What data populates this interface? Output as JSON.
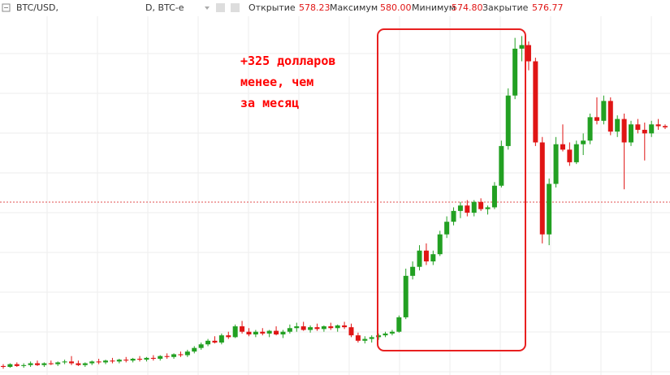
{
  "header": {
    "symbol": "BTC/USD,",
    "interval": "D, BTC-e",
    "open_label": "Открытие",
    "open": "578.23",
    "high_label": "Максимум",
    "high": "580.00",
    "low_label": "Минимум",
    "low": "574.80",
    "close_label": "Закрытие",
    "close": "576.77"
  },
  "chart_data": {
    "type": "candlestick",
    "annotation": [
      "+325 долларов",
      "менее, чем",
      "за месяц"
    ],
    "up_color": "#22a022",
    "down_color": "#e01515",
    "ylim": [
      302,
      718
    ],
    "open": [
      312,
      311,
      314,
      312,
      313,
      315,
      313,
      315,
      314,
      316,
      317,
      315,
      313,
      315,
      317,
      316,
      318,
      317,
      319,
      318,
      320,
      319,
      321,
      320,
      323,
      322,
      325,
      324,
      328,
      332,
      336,
      340,
      338,
      346,
      344,
      356,
      350,
      347,
      350,
      348,
      351,
      347,
      350,
      354,
      356,
      352,
      355,
      353,
      356,
      354,
      357,
      355,
      346,
      340,
      342,
      344,
      346,
      348,
      350,
      366,
      412,
      422,
      440,
      428,
      436,
      458,
      472,
      484,
      490,
      482,
      494,
      486,
      488,
      512,
      556,
      612,
      664,
      668,
      650,
      560,
      458,
      514,
      558,
      552,
      538,
      558,
      562,
      588,
      584,
      606,
      572,
      586,
      560,
      580,
      574,
      570,
      580,
      578.23
    ],
    "high": [
      314,
      315,
      316,
      315,
      317,
      318,
      316,
      318,
      317,
      319,
      323,
      318,
      316,
      318,
      320,
      319,
      321,
      320,
      322,
      321,
      323,
      322,
      324,
      324,
      326,
      326,
      328,
      330,
      334,
      338,
      342,
      345,
      348,
      350,
      358,
      362,
      354,
      352,
      354,
      352,
      356,
      352,
      358,
      360,
      361,
      357,
      359,
      357,
      360,
      358,
      361,
      359,
      349,
      345,
      346,
      348,
      350,
      352,
      368,
      420,
      428,
      446,
      448,
      440,
      462,
      478,
      488,
      494,
      496,
      496,
      498,
      490,
      516,
      562,
      620,
      676,
      678,
      672,
      654,
      566,
      520,
      566,
      580,
      560,
      562,
      570,
      592,
      610,
      612,
      610,
      590,
      592,
      584,
      586,
      582,
      584,
      586,
      580
    ],
    "low": [
      309,
      310,
      311,
      310,
      311,
      312,
      311,
      313,
      312,
      314,
      313,
      312,
      311,
      313,
      314,
      314,
      315,
      315,
      316,
      316,
      317,
      317,
      318,
      318,
      320,
      320,
      322,
      322,
      326,
      330,
      334,
      337,
      336,
      342,
      343,
      348,
      345,
      344,
      346,
      344,
      346,
      343,
      348,
      350,
      351,
      349,
      351,
      350,
      352,
      350,
      353,
      344,
      338,
      337,
      338,
      341,
      344,
      346,
      349,
      364,
      408,
      418,
      424,
      424,
      434,
      454,
      468,
      476,
      478,
      478,
      484,
      480,
      486,
      510,
      552,
      608,
      650,
      640,
      556,
      448,
      446,
      510,
      550,
      534,
      536,
      546,
      558,
      580,
      580,
      568,
      566,
      508,
      556,
      570,
      540,
      566,
      574,
      574.8
    ],
    "close": [
      311,
      314,
      312,
      313,
      315,
      313,
      315,
      314,
      316,
      317,
      315,
      313,
      315,
      317,
      316,
      318,
      317,
      319,
      318,
      320,
      319,
      321,
      320,
      323,
      322,
      325,
      324,
      328,
      332,
      336,
      340,
      338,
      346,
      344,
      356,
      350,
      347,
      350,
      348,
      351,
      347,
      350,
      354,
      356,
      352,
      355,
      353,
      356,
      354,
      357,
      355,
      346,
      340,
      342,
      344,
      346,
      348,
      350,
      366,
      412,
      422,
      440,
      428,
      436,
      458,
      472,
      484,
      490,
      482,
      494,
      486,
      488,
      512,
      556,
      612,
      664,
      668,
      650,
      560,
      458,
      514,
      558,
      552,
      538,
      558,
      562,
      588,
      584,
      606,
      572,
      586,
      560,
      580,
      574,
      570,
      580,
      578,
      576.77
    ]
  }
}
